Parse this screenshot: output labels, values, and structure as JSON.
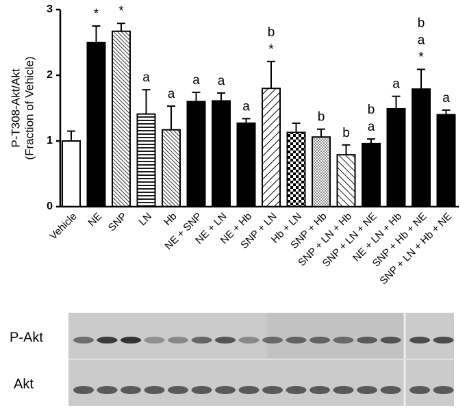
{
  "chart_data": {
    "type": "bar",
    "ylabel": [
      "P-T308-Akt/Akt",
      "(Fraction of Vehicle)"
    ],
    "categories": [
      "Vehicle",
      "NE",
      "SNP",
      "LN",
      "Hb",
      "NE + SNP",
      "NE + LN",
      "NE + Hb",
      "SNP + LN",
      "Hb + LN",
      "SNP + Hb",
      "SNP + LN + Hb",
      "SNP + LN + NE",
      "NE + LN + Hb",
      "SNP + Hb + NE",
      "SNP + LN + Hb + NE"
    ],
    "values": [
      1.0,
      2.5,
      2.67,
      1.41,
      1.17,
      1.6,
      1.61,
      1.27,
      1.8,
      1.13,
      1.06,
      0.79,
      0.96,
      1.49,
      1.79,
      1.4
    ],
    "errors": [
      0.15,
      0.25,
      0.12,
      0.37,
      0.36,
      0.14,
      0.12,
      0.07,
      0.41,
      0.14,
      0.12,
      0.15,
      0.07,
      0.19,
      0.3,
      0.07
    ],
    "fills": [
      "white",
      "black",
      "hatch-dense",
      "hlines",
      "hatch-dense",
      "black",
      "black",
      "black",
      "hatch-back",
      "checker",
      "dots",
      "hatch-wide",
      "black",
      "black",
      "black",
      "black"
    ],
    "annotations": [
      [],
      [
        "*"
      ],
      [
        "*"
      ],
      [
        "a"
      ],
      [
        "a"
      ],
      [
        "a"
      ],
      [
        "a"
      ],
      [
        "a"
      ],
      [
        "b",
        "*"
      ],
      [],
      [
        "b"
      ],
      [
        "b"
      ],
      [
        "b",
        "a"
      ],
      [
        "a"
      ],
      [
        "b",
        "a",
        "*"
      ],
      [
        "a"
      ]
    ],
    "ylim": [
      0,
      3
    ],
    "yticks": [
      0,
      1,
      2,
      3
    ],
    "grid": false
  },
  "blot": {
    "rows": [
      "P-Akt",
      "Akt"
    ]
  }
}
